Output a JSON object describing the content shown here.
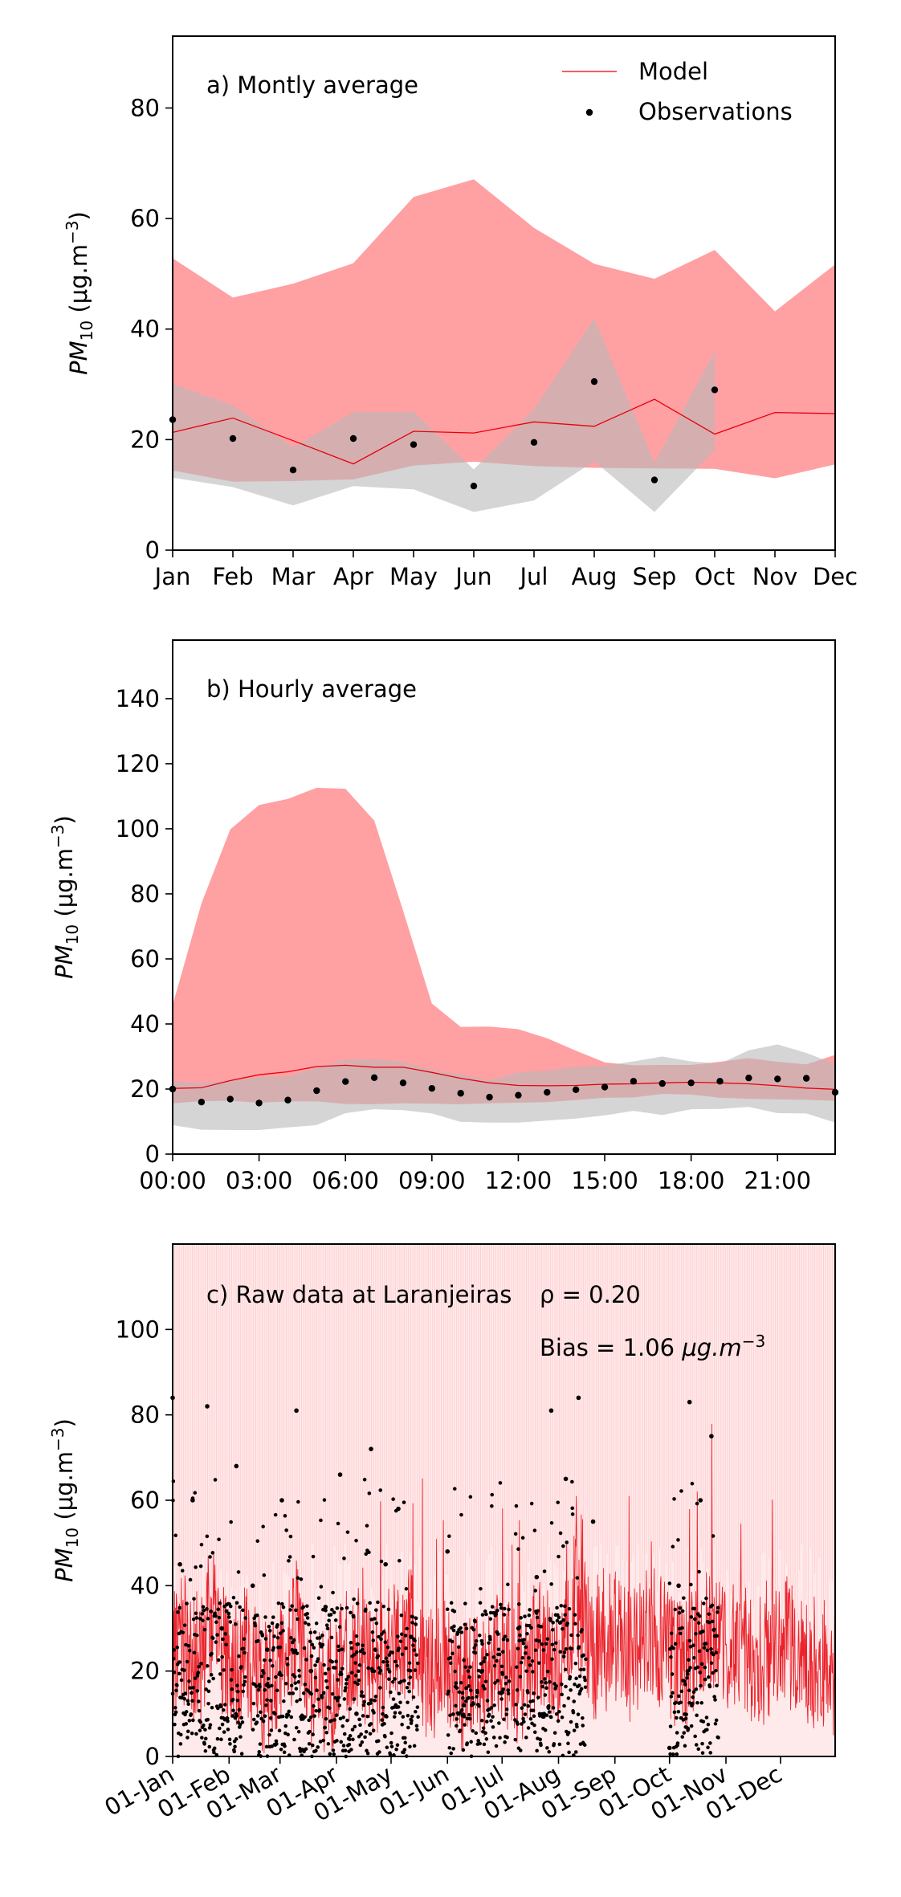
{
  "chart_data": [
    {
      "type": "line",
      "panel": "a",
      "title": "a) Montly average",
      "ylabel_main": "PM",
      "ylabel_sub": "10",
      "ylabel_units": " (μg.m",
      "ylabel_exp": "−3",
      "ylabel_close": ")",
      "ylim": [
        0,
        93
      ],
      "yticks": [
        0,
        20,
        40,
        60,
        80
      ],
      "grid": false,
      "legend_position": "top-right",
      "legend": {
        "model": "Model",
        "observations": "Observations"
      },
      "categories": [
        "Jan",
        "Feb",
        "Mar",
        "Apr",
        "May",
        "Jun",
        "Jul",
        "Aug",
        "Sep",
        "Oct",
        "Nov",
        "Dec"
      ],
      "series": [
        {
          "name": "Model",
          "role": "line",
          "color": "#e8000b",
          "values": [
            21.3,
            23.9,
            19.8,
            15.6,
            21.5,
            21.2,
            23.2,
            22.4,
            27.3,
            21.0,
            24.9,
            24.7
          ]
        },
        {
          "name": "Observations",
          "role": "points",
          "color": "#000000",
          "values": [
            23.6,
            20.2,
            14.5,
            20.2,
            19.1,
            11.6,
            19.5,
            30.5,
            12.7,
            29.0,
            null,
            null
          ]
        }
      ],
      "bands": [
        {
          "role": "model-range",
          "color": "#ffa0a3",
          "low": [
            14.4,
            12.4,
            12.5,
            12.8,
            15.3,
            16.0,
            15.2,
            14.9,
            14.8,
            14.7,
            13.0,
            15.5
          ],
          "high": [
            52.8,
            45.7,
            48.2,
            51.9,
            63.9,
            67.1,
            58.3,
            51.8,
            49.1,
            54.3,
            43.2,
            51.7
          ]
        },
        {
          "role": "observation-range",
          "color": "#b9b9b9",
          "low": [
            13.1,
            11.4,
            8.1,
            11.6,
            11.0,
            6.9,
            9.0,
            16.1,
            6.9,
            18.1,
            null,
            null
          ],
          "high": [
            30.1,
            26.2,
            18.6,
            25.0,
            25.0,
            14.6,
            25.5,
            41.9,
            15.8,
            35.9,
            null,
            null
          ]
        }
      ]
    },
    {
      "type": "line",
      "panel": "b",
      "title": "b) Hourly average",
      "ylabel_main": "PM",
      "ylabel_sub": "10",
      "ylabel_units": " (μg.m",
      "ylabel_exp": "−3",
      "ylabel_close": ")",
      "ylim": [
        0,
        158
      ],
      "xlim": [
        0,
        23
      ],
      "yticks": [
        0,
        20,
        40,
        60,
        80,
        100,
        120,
        140
      ],
      "xticks": [
        {
          "hour": 0,
          "label": "00:00"
        },
        {
          "hour": 3,
          "label": "03:00"
        },
        {
          "hour": 6,
          "label": "06:00"
        },
        {
          "hour": 9,
          "label": "09:00"
        },
        {
          "hour": 12,
          "label": "12:00"
        },
        {
          "hour": 15,
          "label": "15:00"
        },
        {
          "hour": 18,
          "label": "18:00"
        },
        {
          "hour": 21,
          "label": "21:00"
        }
      ],
      "grid": false,
      "x": [
        0,
        1,
        2,
        3,
        4,
        5,
        6,
        7,
        8,
        9,
        10,
        11,
        12,
        13,
        14,
        15,
        16,
        17,
        18,
        19,
        20,
        21,
        22,
        23
      ],
      "series": [
        {
          "name": "Model",
          "role": "line",
          "color": "#e8000b",
          "values": [
            20.2,
            20.4,
            22.6,
            24.4,
            25.3,
            26.9,
            27.3,
            26.7,
            26.7,
            25.1,
            23.3,
            21.9,
            21.1,
            21.0,
            21.1,
            21.5,
            21.6,
            21.9,
            22.1,
            21.9,
            21.6,
            21.0,
            20.3,
            19.9
          ]
        },
        {
          "name": "Observations",
          "role": "points",
          "color": "#000000",
          "values": [
            20.0,
            16.0,
            16.9,
            15.7,
            16.6,
            19.5,
            22.3,
            23.5,
            21.9,
            20.2,
            18.7,
            17.5,
            18.1,
            19.0,
            19.8,
            20.6,
            22.4,
            21.7,
            21.9,
            22.4,
            23.4,
            23.1,
            23.3,
            19.0
          ]
        }
      ],
      "bands": [
        {
          "role": "model-range",
          "color": "#ffa0a3",
          "low": [
            15.6,
            16.3,
            16.4,
            15.8,
            16.2,
            16.2,
            15.4,
            15.3,
            15.6,
            15.5,
            15.3,
            15.6,
            15.8,
            16.0,
            16.6,
            17.3,
            17.4,
            18.5,
            18.3,
            17.3,
            17.0,
            16.8,
            16.7,
            16.4
          ],
          "high": [
            45.8,
            77.1,
            99.8,
            107.3,
            109.2,
            112.6,
            112.3,
            102.5,
            74.8,
            46.3,
            39.1,
            39.2,
            38.4,
            35.6,
            31.8,
            28.2,
            27.3,
            27.4,
            27.4,
            28.4,
            29.5,
            28.4,
            27.6,
            30.5
          ]
        },
        {
          "role": "observation-range",
          "color": "#b9b9b9",
          "low": [
            8.9,
            7.5,
            7.4,
            7.4,
            8.2,
            8.9,
            12.6,
            13.8,
            13.5,
            12.5,
            9.9,
            9.7,
            9.7,
            10.3,
            10.9,
            11.9,
            13.3,
            12.0,
            13.8,
            13.9,
            14.5,
            12.6,
            12.5,
            9.7
          ],
          "high": [
            22.4,
            21.8,
            22.7,
            23.7,
            23.9,
            26.6,
            29.0,
            29.1,
            28.4,
            25.9,
            24.5,
            22.7,
            25.2,
            25.6,
            26.9,
            27.2,
            28.5,
            30.0,
            28.5,
            27.8,
            31.9,
            33.7,
            31.1,
            27.7
          ]
        }
      ]
    },
    {
      "type": "line",
      "panel": "c",
      "title": "c) Raw data at Laranjeiras",
      "stats": {
        "rho_label": "ρ = 0.20",
        "bias_main": "Bias = 1.06 ",
        "bias_units": "μg.m",
        "bias_exp": "−3"
      },
      "ylabel_main": "PM",
      "ylabel_sub": "10",
      "ylabel_units": " (μg.m",
      "ylabel_exp": "−3",
      "ylabel_close": ")",
      "ylim": [
        0,
        120
      ],
      "xlim": [
        "2019-01-01",
        "2019-12-31"
      ],
      "yticks": [
        0,
        20,
        40,
        60,
        80,
        100
      ],
      "xticks": [
        {
          "date": "2019-01-01",
          "label": "01-Jan"
        },
        {
          "date": "2019-02-01",
          "label": "01-Feb"
        },
        {
          "date": "2019-03-01",
          "label": "01-Mar"
        },
        {
          "date": "2019-04-01",
          "label": "01-Apr"
        },
        {
          "date": "2019-05-01",
          "label": "01-May"
        },
        {
          "date": "2019-06-01",
          "label": "01-Jun"
        },
        {
          "date": "2019-07-01",
          "label": "01-Jul"
        },
        {
          "date": "2019-08-01",
          "label": "01-Aug"
        },
        {
          "date": "2019-09-01",
          "label": "01-Sep"
        },
        {
          "date": "2019-10-01",
          "label": "01-Oct"
        },
        {
          "date": "2019-11-01",
          "label": "01-Nov"
        },
        {
          "date": "2019-12-01",
          "label": "01-Dec"
        }
      ],
      "grid": false,
      "series": [
        {
          "name": "Model",
          "role": "line",
          "color": "#e8000b",
          "note": "hourly series, range about 0–75, typical 10–40; shown as sampled points",
          "x": [
            "2019-01-01",
            "2019-01-08",
            "2019-01-15",
            "2019-01-22",
            "2019-02-01",
            "2019-02-10",
            "2019-02-20",
            "2019-03-01",
            "2019-03-10",
            "2019-03-20",
            "2019-04-01",
            "2019-04-10",
            "2019-04-20",
            "2019-05-01",
            "2019-05-10",
            "2019-05-20",
            "2019-06-01",
            "2019-06-10",
            "2019-06-20",
            "2019-07-01",
            "2019-07-10",
            "2019-07-20",
            "2019-08-01",
            "2019-08-10",
            "2019-08-20",
            "2019-09-01",
            "2019-09-10",
            "2019-09-20",
            "2019-10-01",
            "2019-10-10",
            "2019-10-20",
            "2019-11-01",
            "2019-11-10",
            "2019-11-20",
            "2019-12-01",
            "2019-12-10",
            "2019-12-20",
            "2019-12-31"
          ],
          "values": [
            22,
            28,
            18,
            35,
            20,
            24,
            15,
            22,
            30,
            14,
            18,
            26,
            20,
            24,
            30,
            19,
            22,
            16,
            20,
            24,
            18,
            26,
            22,
            38,
            24,
            28,
            22,
            30,
            24,
            20,
            30,
            24,
            26,
            22,
            28,
            24,
            22,
            20
          ]
        },
        {
          "name": "Observations",
          "role": "points",
          "color": "#000000",
          "note": "hourly observations with data gaps; shown as sampled points",
          "x": [
            "2019-01-01",
            "2019-01-05",
            "2019-01-12",
            "2019-01-20",
            "2019-01-28",
            "2019-02-05",
            "2019-02-14",
            "2019-02-22",
            "2019-03-02",
            "2019-03-10",
            "2019-03-18",
            "2019-03-26",
            "2019-04-03",
            "2019-04-12",
            "2019-04-20",
            "2019-04-28",
            "2019-05-05",
            "2019-05-12",
            "2019-06-01",
            "2019-06-10",
            "2019-06-20",
            "2019-07-01",
            "2019-07-10",
            "2019-07-20",
            "2019-07-28",
            "2019-08-05",
            "2019-08-12",
            "2019-08-20",
            "2019-10-01",
            "2019-10-06",
            "2019-10-12",
            "2019-10-18",
            "2019-10-24"
          ],
          "values": [
            84,
            45,
            60,
            82,
            30,
            68,
            40,
            25,
            60,
            81,
            20,
            35,
            66,
            10,
            72,
            45,
            58,
            28,
            48,
            12,
            20,
            15,
            30,
            42,
            81,
            65,
            84,
            55,
            2,
            40,
            83,
            60,
            75
          ]
        }
      ],
      "bands": [
        {
          "role": "model-range",
          "color": "#ffa0a3",
          "low": 0,
          "high": 120
        }
      ]
    }
  ]
}
